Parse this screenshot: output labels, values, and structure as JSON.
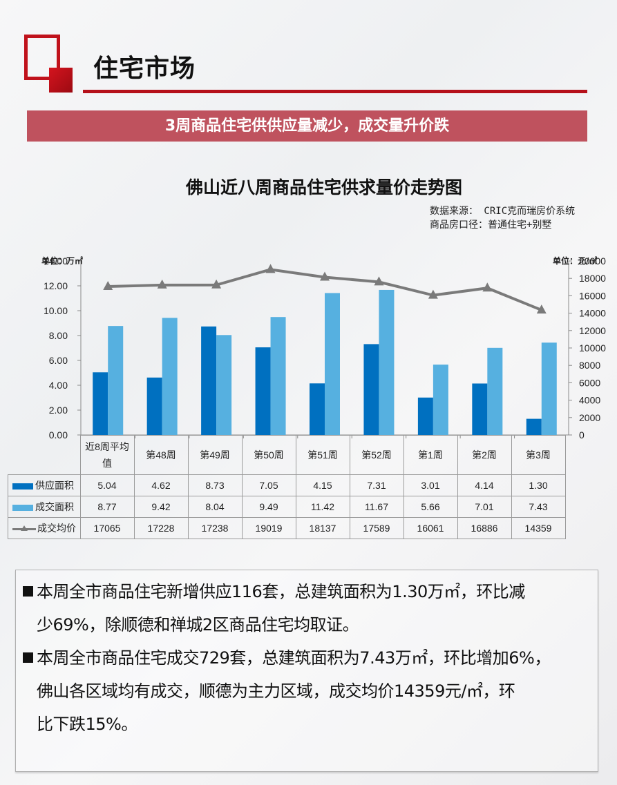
{
  "header": {
    "section_title": "住宅市场",
    "banner_text": "3周商品住宅供供应量减少，成交量升价跌",
    "accent_color": "#c0121b",
    "banner_color": "#bf525e"
  },
  "chart": {
    "title": "佛山近八周商品住宅供求量价走势图",
    "source_line1": "数据来源： CRIC克而瑞房价系统",
    "source_line2": "商品房口径：普通住宅+别墅",
    "unit_left": "单位：万㎡",
    "unit_right": "单位：元/㎡"
  },
  "chart_data": {
    "type": "bar",
    "title": "佛山近八周商品住宅供求量价走势图",
    "categories": [
      "近8周平均值",
      "第48周",
      "第49周",
      "第50周",
      "第51周",
      "第52周",
      "第1周",
      "第2周",
      "第3周"
    ],
    "series": [
      {
        "name": "供应面积",
        "type": "bar",
        "axis": "left",
        "color": "#0070c0",
        "values": [
          5.04,
          4.62,
          8.73,
          7.05,
          4.15,
          7.31,
          3.01,
          4.14,
          1.3
        ]
      },
      {
        "name": "成交面积",
        "type": "bar",
        "axis": "left",
        "color": "#56b0e0",
        "values": [
          8.77,
          9.42,
          8.04,
          9.49,
          11.42,
          11.67,
          5.66,
          7.01,
          7.43
        ]
      },
      {
        "name": "成交均价",
        "type": "line",
        "axis": "right",
        "color": "#7a7a7a",
        "marker": "triangle",
        "values": [
          17065,
          17228,
          17238,
          19019,
          18137,
          17589,
          16061,
          16886,
          14359
        ]
      }
    ],
    "ylabel": "单位：万㎡",
    "ylabel_right": "单位：元/㎡",
    "ylim": [
      0,
      14
    ],
    "ylim_right": [
      0,
      20000
    ],
    "yticks": [
      "0.00",
      "2.00",
      "4.00",
      "6.00",
      "8.00",
      "10.00",
      "12.00",
      "14.00"
    ],
    "yticks_right": [
      "0",
      "2000",
      "4000",
      "6000",
      "8000",
      "10000",
      "12000",
      "14000",
      "16000",
      "18000",
      "20000"
    ],
    "grid": false,
    "legend_position": "data-table"
  },
  "table": {
    "header": [
      "近8周平均值",
      "第48周",
      "第49周",
      "第50周",
      "第51周",
      "第52周",
      "第1周",
      "第2周",
      "第3周"
    ],
    "header_first_line1": "近8周平均",
    "header_first_line2": "值",
    "rows": [
      {
        "label": "供应面积",
        "cells": [
          "5.04",
          "4.62",
          "8.73",
          "7.05",
          "4.15",
          "7.31",
          "3.01",
          "4.14",
          "1.30"
        ]
      },
      {
        "label": "成交面积",
        "cells": [
          "8.77",
          "9.42",
          "8.04",
          "9.49",
          "11.42",
          "11.67",
          "5.66",
          "7.01",
          "7.43"
        ]
      },
      {
        "label": "成交均价",
        "cells": [
          "17065",
          "17228",
          "17238",
          "19019",
          "18137",
          "17589",
          "16061",
          "16886",
          "14359"
        ]
      }
    ]
  },
  "summary": {
    "para1_line1": "本周全市商品住宅新增供应116套，总建筑面积为1.30万㎡，环比减",
    "para1_line2": "少69%，除顺德和禅城2区商品住宅均取证。",
    "para2_line1": "本周全市商品住宅成交729套，总建筑面积为7.43万㎡，环比增加6%，",
    "para2_line2": "佛山各区域均有成交，顺德为主力区域，成交均价14359元/㎡，环",
    "para2_line3": "比下跌15%。"
  }
}
